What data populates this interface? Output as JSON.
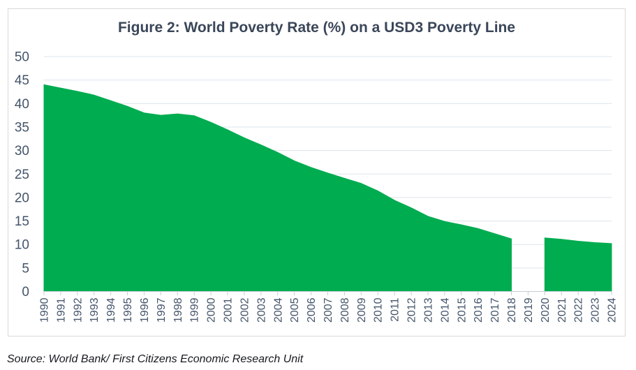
{
  "figure": {
    "title": "Figure 2: World Poverty Rate (%) on a USD3 Poverty Line",
    "source_note": "Source: World Bank/ First Citizens Economic Research Unit"
  },
  "colors": {
    "series_green": "#00AC50",
    "title_text": "#3A4659",
    "axis_text": "#44546A",
    "gridline": "#DCE3EE",
    "axis_line": "#C6CCD8",
    "card_border": "#D9D9D9",
    "source_text": "#16191F",
    "background": "#FFFFFF"
  },
  "chart_data": {
    "type": "area",
    "title": "Figure 2: World Poverty Rate (%) on a USD3 Poverty Line",
    "x": [
      1990,
      1991,
      1992,
      1993,
      1994,
      1995,
      1996,
      1997,
      1998,
      1999,
      2000,
      2001,
      2002,
      2003,
      2004,
      2005,
      2006,
      2007,
      2008,
      2009,
      2010,
      2011,
      2012,
      2013,
      2014,
      2015,
      2016,
      2017,
      2018,
      2019,
      2020,
      2021,
      2022,
      2023,
      2024
    ],
    "values": [
      44.0,
      43.3,
      42.6,
      41.8,
      40.6,
      39.4,
      38.0,
      37.5,
      37.8,
      37.4,
      36.0,
      34.4,
      32.7,
      31.2,
      29.6,
      27.8,
      26.4,
      25.2,
      24.1,
      23.0,
      21.4,
      19.4,
      17.8,
      16.0,
      14.9,
      14.2,
      13.4,
      12.3,
      11.2,
      null,
      11.4,
      11.1,
      10.7,
      10.4,
      10.2
    ],
    "missing_years": [
      2019
    ],
    "xlabel": "",
    "ylabel": "",
    "ylim": [
      0,
      50
    ],
    "ytick_step": 5,
    "grid": true,
    "legend": "none",
    "x_tick_label_rotation_deg": 90
  }
}
